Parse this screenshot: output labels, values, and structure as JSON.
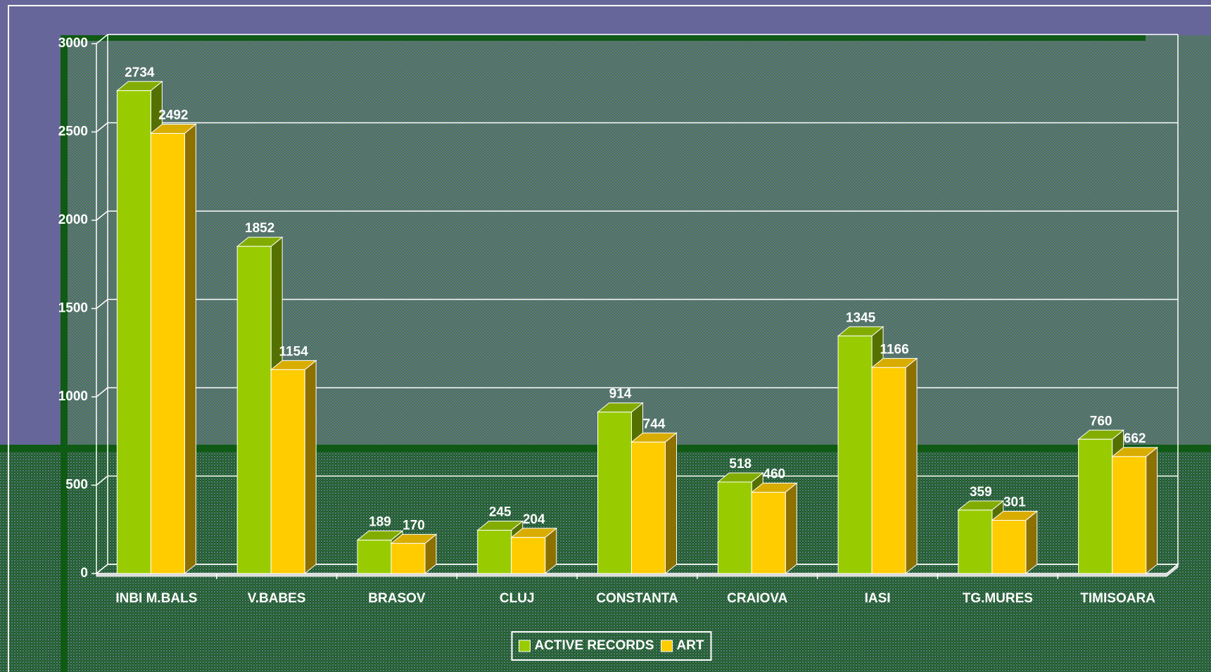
{
  "chart_data": {
    "type": "bar3d",
    "categories": [
      "INBI M.BALS",
      "V.BABES",
      "BRASOV",
      "CLUJ",
      "CONSTANTA",
      "CRAIOVA",
      "IASI",
      "TG.MURES",
      "TIMISOARA"
    ],
    "series": [
      {
        "name": "ACTIVE RECORDS",
        "color": "#99cc00",
        "values": [
          2734,
          1852,
          189,
          245,
          914,
          518,
          1345,
          359,
          760
        ]
      },
      {
        "name": "ART",
        "color": "#ffcc00",
        "values": [
          2492,
          1154,
          170,
          204,
          744,
          460,
          1166,
          301,
          662
        ]
      }
    ],
    "ylim": [
      0,
      3000
    ],
    "yticks": [
      0,
      500,
      1000,
      1500,
      2000,
      2500,
      3000
    ],
    "grid": true,
    "legend": "bottom"
  }
}
